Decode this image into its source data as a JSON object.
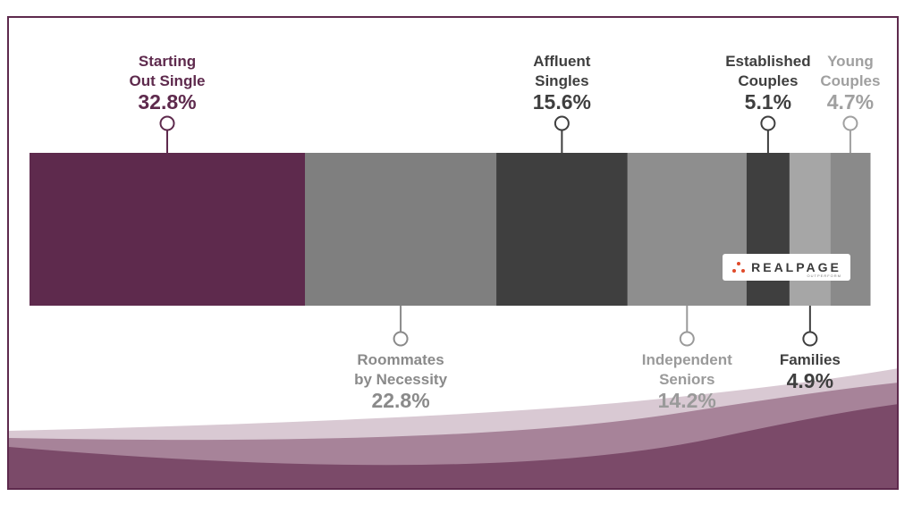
{
  "chart_data": {
    "type": "bar",
    "subtype": "stacked-horizontal-100",
    "title": "",
    "xlabel": "",
    "ylabel": "",
    "series": [
      {
        "name": "Starting Out Single",
        "label_lines": [
          "Starting",
          "Out Single"
        ],
        "value": 32.8,
        "value_label": "32.8%",
        "color": "#5e2a4d",
        "label_color": "#5e2a4d",
        "label_side": "top"
      },
      {
        "name": "Roommates by Necessity",
        "label_lines": [
          "Roommates",
          "by Necessity"
        ],
        "value": 22.8,
        "value_label": "22.8%",
        "color": "#7f7f7f",
        "label_color": "#8a8a8a",
        "label_side": "bottom"
      },
      {
        "name": "Affluent Singles",
        "label_lines": [
          "Affluent",
          "Singles"
        ],
        "value": 15.6,
        "value_label": "15.6%",
        "color": "#3f3f3f",
        "label_color": "#3f3f3f",
        "label_side": "top"
      },
      {
        "name": "Independent Seniors",
        "label_lines": [
          "Independent",
          "Seniors"
        ],
        "value": 14.2,
        "value_label": "14.2%",
        "color": "#8e8e8e",
        "label_color": "#9a9a9a",
        "label_side": "bottom"
      },
      {
        "name": "Established Couples",
        "label_lines": [
          "Established",
          "Couples"
        ],
        "value": 5.1,
        "value_label": "5.1%",
        "color": "#3f3f3f",
        "label_color": "#3f3f3f",
        "label_side": "top"
      },
      {
        "name": "Families",
        "label_lines": [
          "Families"
        ],
        "value": 4.9,
        "value_label": "4.9%",
        "color": "#a6a6a6",
        "label_color": "#3f3f3f",
        "label_side": "bottom"
      },
      {
        "name": "Young Couples",
        "label_lines": [
          "Young",
          "Couples"
        ],
        "value": 4.7,
        "value_label": "4.7%",
        "color": "#8a8a8a",
        "label_color": "#a0a0a0",
        "label_side": "top"
      }
    ]
  },
  "logo": {
    "text": "REALPAGE",
    "tagline": "OUTPERFORM",
    "accent_color": "#e04a2a"
  },
  "theme": {
    "border_color": "#5e2a4d",
    "wave_light": "#d9c9d3",
    "wave_mid": "#a78399",
    "wave_dark": "#7b4a69"
  }
}
